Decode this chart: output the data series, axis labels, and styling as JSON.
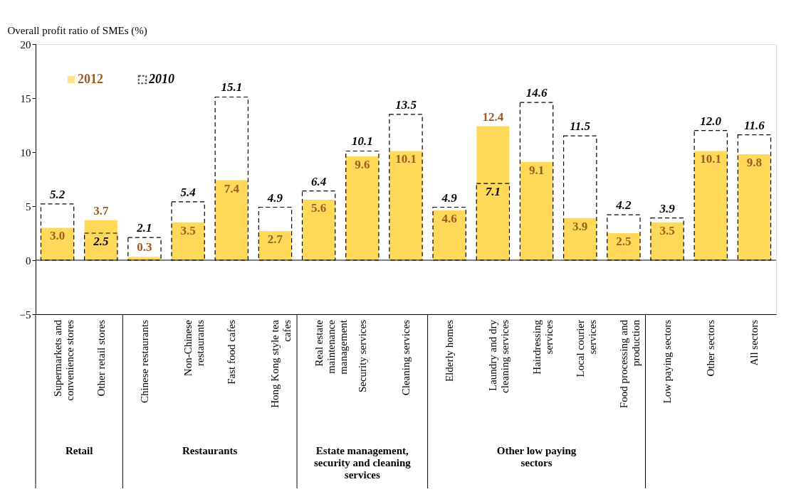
{
  "chart_data": {
    "type": "bar",
    "ylabel": "Overall profit ratio of SMEs (%)",
    "categories": [
      "Supermarkets and convenience stores",
      "Other retail stores",
      "Chinese restaurants",
      "Non-Chinese restaurants",
      "Fast food cafes",
      "Hong Kong style tea cafes",
      "Real estate maintenance management",
      "Security services",
      "Cleaning services",
      "Elderly homes",
      "Laundry and dry cleaning services",
      "Hairdressing services",
      "Local courier services",
      "Food processing and production",
      "Low paying sectors",
      "Other sectors",
      "All sectors"
    ],
    "series": [
      {
        "name": "2012",
        "color": "#ffd959",
        "values": [
          3.0,
          3.7,
          0.3,
          3.5,
          7.4,
          2.7,
          5.6,
          9.6,
          10.1,
          4.6,
          12.4,
          9.1,
          3.9,
          2.5,
          3.5,
          10.1,
          9.8
        ],
        "value_labels": [
          "3.0",
          "3.7",
          "0.3",
          "3.5",
          "7.4",
          "2.7",
          "5.6",
          "9.6",
          "10.1",
          "4.6",
          "12.4",
          "9.1",
          "3.9",
          "2.5",
          "3.5",
          "10.1",
          "9.8"
        ]
      },
      {
        "name": "2010",
        "color": "#000000",
        "line_style": "dashed",
        "values": [
          5.2,
          2.5,
          2.1,
          5.4,
          15.1,
          4.9,
          6.4,
          10.1,
          13.5,
          4.9,
          7.1,
          14.6,
          11.5,
          4.2,
          3.9,
          12.0,
          11.6
        ],
        "value_labels": [
          "5.2",
          "2.5",
          "2.1",
          "5.4",
          "15.1",
          "4.9",
          "6.4",
          "10.1",
          "13.5",
          "4.9",
          "7.1",
          "14.6",
          "11.5",
          "4.2",
          "3.9",
          "12.0",
          "11.6"
        ]
      }
    ],
    "ylim": [
      -5,
      20
    ],
    "yticks": [
      -5,
      0,
      5,
      10,
      15,
      20
    ],
    "grid": false,
    "legend": "top left",
    "ref_lines": [
      {
        "axis": "y",
        "value": 0,
        "color": "#000000"
      }
    ],
    "annotations": [
      "Retail",
      "Restaurants",
      "Estate management, security and cleaning services",
      "Other low paying sectors"
    ]
  }
}
